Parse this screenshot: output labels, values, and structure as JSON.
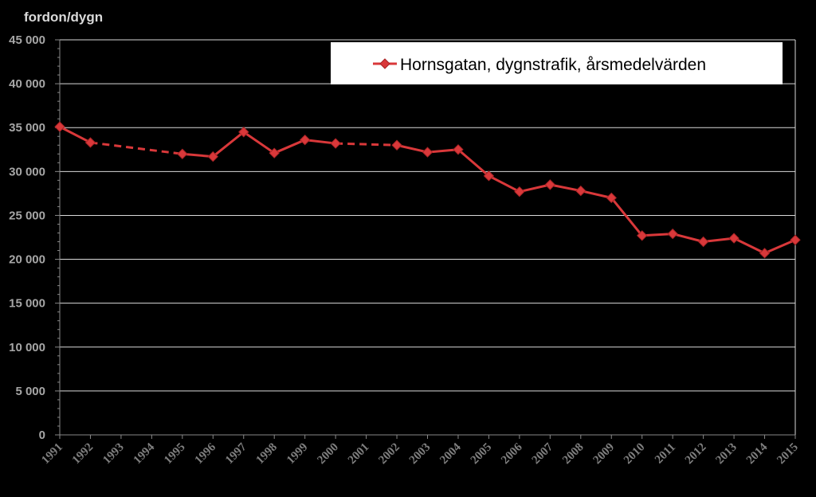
{
  "chart_data": {
    "type": "line",
    "ylabel": "fordon/dygn",
    "xlabel": "",
    "ylim": [
      0,
      45000
    ],
    "ytick_step": 5000,
    "ytick_labels": [
      "0",
      "5 000",
      "10 000",
      "15 000",
      "20 000",
      "25 000",
      "30 000",
      "35 000",
      "40 000",
      "45 000"
    ],
    "categories": [
      "1991",
      "1992",
      "1993",
      "1994",
      "1995",
      "1996",
      "1997",
      "1998",
      "1999",
      "2000",
      "2001",
      "2002",
      "2003",
      "2004",
      "2005",
      "2006",
      "2007",
      "2008",
      "2009",
      "2010",
      "2011",
      "2012",
      "2013",
      "2014",
      "2015"
    ],
    "grid": true,
    "legend_position": "top-right",
    "series": [
      {
        "name": "Hornsgatan, dygnstrafik, årsmedelvärden",
        "color": "#d9383a",
        "marker": "diamond",
        "values": [
          35100,
          33300,
          null,
          null,
          32000,
          31700,
          34500,
          32100,
          33600,
          33200,
          null,
          33000,
          32200,
          32500,
          29500,
          27700,
          28500,
          27800,
          27000,
          22700,
          22900,
          22000,
          22400,
          20700,
          22200
        ],
        "dashed_gaps": true
      }
    ]
  }
}
